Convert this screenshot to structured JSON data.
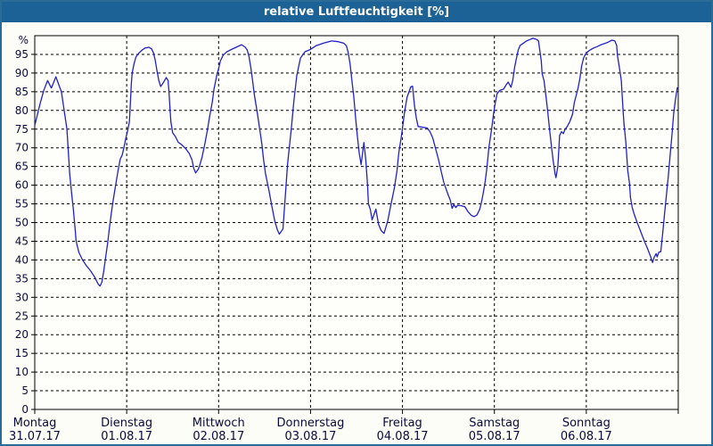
{
  "window": {
    "title": "relative Luftfeuchtigkeit [%]"
  },
  "colors": {
    "titlebar_bg": "#1d6296",
    "window_border": "#2a6b97",
    "content_bg": "#fdfdf7",
    "plot_bg": "#fefefb",
    "axis": "#000000",
    "grid": "#000000",
    "tick_text": "#0a0a3a",
    "line": "#2121c8",
    "title_text": "#ffffff"
  },
  "chart_data": {
    "type": "line",
    "title": "relative Luftfeuchtigkeit [%]",
    "ylabel": "%",
    "ylim": [
      0,
      100
    ],
    "ytick_step": 5,
    "yticks": [
      0,
      5,
      10,
      15,
      20,
      25,
      30,
      35,
      40,
      45,
      50,
      55,
      60,
      65,
      70,
      75,
      80,
      85,
      90,
      95
    ],
    "grid": true,
    "legend": "none",
    "x_axis": {
      "unit": "days",
      "xlim": [
        0,
        7
      ],
      "day_ticks": [
        {
          "name": "Montag",
          "date": "31.07.17",
          "t": 0
        },
        {
          "name": "Dienstag",
          "date": "01.08.17",
          "t": 1
        },
        {
          "name": "Mittwoch",
          "date": "02.08.17",
          "t": 2
        },
        {
          "name": "Donnerstag",
          "date": "03.08.17",
          "t": 3
        },
        {
          "name": "Freitag",
          "date": "04.08.17",
          "t": 4
        },
        {
          "name": "Samstag",
          "date": "05.08.17",
          "t": 5
        },
        {
          "name": "Sonntag",
          "date": "06.08.17",
          "t": 6
        }
      ]
    },
    "series": [
      {
        "name": "relative Luftfeuchtigkeit [%]",
        "points": [
          [
            0.0,
            76
          ],
          [
            0.03,
            79
          ],
          [
            0.06,
            82
          ],
          [
            0.1,
            85.5
          ],
          [
            0.14,
            88
          ],
          [
            0.18,
            86
          ],
          [
            0.23,
            89
          ],
          [
            0.26,
            87
          ],
          [
            0.29,
            85
          ],
          [
            0.32,
            80
          ],
          [
            0.35,
            75
          ],
          [
            0.37,
            67
          ],
          [
            0.38,
            63
          ],
          [
            0.4,
            58
          ],
          [
            0.42,
            53.5
          ],
          [
            0.44,
            48
          ],
          [
            0.45,
            45
          ],
          [
            0.48,
            42
          ],
          [
            0.52,
            40
          ],
          [
            0.56,
            38.5
          ],
          [
            0.61,
            37
          ],
          [
            0.65,
            35.5
          ],
          [
            0.69,
            33.5
          ],
          [
            0.71,
            33
          ],
          [
            0.73,
            34
          ],
          [
            0.75,
            37
          ],
          [
            0.77,
            40.5
          ],
          [
            0.79,
            44
          ],
          [
            0.81,
            48
          ],
          [
            0.83,
            52
          ],
          [
            0.85,
            55.5
          ],
          [
            0.87,
            58.5
          ],
          [
            0.89,
            61.5
          ],
          [
            0.91,
            64.5
          ],
          [
            0.93,
            67
          ],
          [
            0.95,
            68
          ],
          [
            0.97,
            70
          ],
          [
            0.99,
            72.5
          ],
          [
            1.01,
            74.5
          ],
          [
            1.03,
            77
          ],
          [
            1.04,
            82
          ],
          [
            1.05,
            87
          ],
          [
            1.06,
            90
          ],
          [
            1.08,
            92.5
          ],
          [
            1.1,
            94.3
          ],
          [
            1.13,
            95.3
          ],
          [
            1.17,
            96.2
          ],
          [
            1.2,
            96.7
          ],
          [
            1.24,
            96.9
          ],
          [
            1.27,
            96.5
          ],
          [
            1.29,
            95.5
          ],
          [
            1.31,
            93.5
          ],
          [
            1.33,
            90.5
          ],
          [
            1.35,
            88
          ],
          [
            1.37,
            86.4
          ],
          [
            1.4,
            87.5
          ],
          [
            1.43,
            88.8
          ],
          [
            1.45,
            88
          ],
          [
            1.46,
            85
          ],
          [
            1.47,
            81
          ],
          [
            1.48,
            77
          ],
          [
            1.5,
            74
          ],
          [
            1.53,
            73
          ],
          [
            1.56,
            71.5
          ],
          [
            1.6,
            70.8
          ],
          [
            1.64,
            69.8
          ],
          [
            1.68,
            68.5
          ],
          [
            1.71,
            66.8
          ],
          [
            1.73,
            64.5
          ],
          [
            1.75,
            63.3
          ],
          [
            1.78,
            64.3
          ],
          [
            1.8,
            65.8
          ],
          [
            1.82,
            67.5
          ],
          [
            1.85,
            71
          ],
          [
            1.88,
            75
          ],
          [
            1.9,
            78.1
          ],
          [
            1.93,
            82.1
          ],
          [
            1.95,
            85.7
          ],
          [
            1.98,
            89.3
          ],
          [
            2.0,
            91.2
          ],
          [
            2.02,
            93.3
          ],
          [
            2.05,
            94.8
          ],
          [
            2.09,
            95.7
          ],
          [
            2.13,
            96.2
          ],
          [
            2.19,
            96.9
          ],
          [
            2.25,
            97.6
          ],
          [
            2.29,
            96.9
          ],
          [
            2.31,
            96.2
          ],
          [
            2.33,
            94.5
          ],
          [
            2.35,
            91.5
          ],
          [
            2.37,
            88
          ],
          [
            2.39,
            84
          ],
          [
            2.41,
            81
          ],
          [
            2.43,
            77.9
          ],
          [
            2.45,
            74.5
          ],
          [
            2.47,
            71
          ],
          [
            2.49,
            66.7
          ],
          [
            2.51,
            63.1
          ],
          [
            2.55,
            58.3
          ],
          [
            2.58,
            54.3
          ],
          [
            2.61,
            50.5
          ],
          [
            2.64,
            48
          ],
          [
            2.66,
            46.9
          ],
          [
            2.7,
            48.3
          ],
          [
            2.72,
            55
          ],
          [
            2.75,
            65.5
          ],
          [
            2.79,
            75
          ],
          [
            2.82,
            82.9
          ],
          [
            2.85,
            89.3
          ],
          [
            2.89,
            94
          ],
          [
            2.94,
            95.7
          ],
          [
            2.99,
            96.2
          ],
          [
            3.06,
            97.3
          ],
          [
            3.14,
            98
          ],
          [
            3.23,
            98.6
          ],
          [
            3.3,
            98.4
          ],
          [
            3.36,
            98
          ],
          [
            3.39,
            97.3
          ],
          [
            3.41,
            95.5
          ],
          [
            3.43,
            92.4
          ],
          [
            3.45,
            88.1
          ],
          [
            3.47,
            83.8
          ],
          [
            3.49,
            78
          ],
          [
            3.51,
            73
          ],
          [
            3.53,
            68.5
          ],
          [
            3.55,
            65.5
          ],
          [
            3.58,
            71.4
          ],
          [
            3.6,
            67.1
          ],
          [
            3.62,
            60
          ],
          [
            3.63,
            55
          ],
          [
            3.65,
            53.5
          ],
          [
            3.67,
            50.7
          ],
          [
            3.71,
            53.6
          ],
          [
            3.74,
            49.5
          ],
          [
            3.77,
            47.8
          ],
          [
            3.8,
            47.1
          ],
          [
            3.84,
            50.5
          ],
          [
            3.87,
            54.3
          ],
          [
            3.91,
            59
          ],
          [
            3.94,
            63.8
          ],
          [
            3.96,
            68.6
          ],
          [
            3.99,
            73.3
          ],
          [
            4.02,
            79
          ],
          [
            4.05,
            83.5
          ],
          [
            4.09,
            86.3
          ],
          [
            4.11,
            86.5
          ],
          [
            4.13,
            81.4
          ],
          [
            4.15,
            78.1
          ],
          [
            4.17,
            75.7
          ],
          [
            4.22,
            75.5
          ],
          [
            4.27,
            75.3
          ],
          [
            4.3,
            74.3
          ],
          [
            4.33,
            72.6
          ],
          [
            4.36,
            69.8
          ],
          [
            4.39,
            67.1
          ],
          [
            4.42,
            63.8
          ],
          [
            4.45,
            60.7
          ],
          [
            4.49,
            57.9
          ],
          [
            4.52,
            56
          ],
          [
            4.54,
            53.8
          ],
          [
            4.56,
            54.8
          ],
          [
            4.58,
            54
          ],
          [
            4.6,
            54.6
          ],
          [
            4.64,
            54.5
          ],
          [
            4.68,
            54.2
          ],
          [
            4.71,
            53
          ],
          [
            4.75,
            51.9
          ],
          [
            4.78,
            51.6
          ],
          [
            4.81,
            52
          ],
          [
            4.84,
            53.5
          ],
          [
            4.86,
            55.5
          ],
          [
            4.88,
            58
          ],
          [
            4.9,
            61
          ],
          [
            4.92,
            65
          ],
          [
            4.94,
            70
          ],
          [
            4.97,
            75
          ],
          [
            4.99,
            79
          ],
          [
            5.01,
            82
          ],
          [
            5.03,
            84.5
          ],
          [
            5.06,
            85.4
          ],
          [
            5.1,
            85.7
          ],
          [
            5.13,
            86.9
          ],
          [
            5.15,
            87.6
          ],
          [
            5.18,
            86.2
          ],
          [
            5.2,
            88
          ],
          [
            5.22,
            91.5
          ],
          [
            5.24,
            94
          ],
          [
            5.26,
            96.2
          ],
          [
            5.28,
            97.4
          ],
          [
            5.31,
            97.9
          ],
          [
            5.35,
            98.6
          ],
          [
            5.39,
            99
          ],
          [
            5.42,
            99.3
          ],
          [
            5.46,
            99
          ],
          [
            5.48,
            98.6
          ],
          [
            5.49,
            96.7
          ],
          [
            5.51,
            93.3
          ],
          [
            5.52,
            89.8
          ],
          [
            5.54,
            88
          ],
          [
            5.56,
            84
          ],
          [
            5.58,
            79.8
          ],
          [
            5.6,
            75
          ],
          [
            5.62,
            70.5
          ],
          [
            5.64,
            66.5
          ],
          [
            5.66,
            63
          ],
          [
            5.67,
            62
          ],
          [
            5.69,
            65
          ],
          [
            5.71,
            73.3
          ],
          [
            5.73,
            74.3
          ],
          [
            5.75,
            73.8
          ],
          [
            5.77,
            75
          ],
          [
            5.79,
            75.6
          ],
          [
            5.82,
            77
          ],
          [
            5.85,
            79
          ],
          [
            5.87,
            82.1
          ],
          [
            5.89,
            84
          ],
          [
            5.91,
            86
          ],
          [
            5.93,
            88.5
          ],
          [
            5.95,
            92
          ],
          [
            5.97,
            94
          ],
          [
            5.99,
            95
          ],
          [
            6.02,
            95.8
          ],
          [
            6.05,
            96.3
          ],
          [
            6.08,
            96.7
          ],
          [
            6.12,
            97.1
          ],
          [
            6.16,
            97.6
          ],
          [
            6.2,
            97.9
          ],
          [
            6.24,
            98.3
          ],
          [
            6.28,
            98.8
          ],
          [
            6.31,
            98.6
          ],
          [
            6.33,
            97.4
          ],
          [
            6.34,
            94.5
          ],
          [
            6.36,
            91.4
          ],
          [
            6.38,
            88
          ],
          [
            6.39,
            84
          ],
          [
            6.4,
            80
          ],
          [
            6.41,
            76.5
          ],
          [
            6.43,
            71.5
          ],
          [
            6.44,
            68
          ],
          [
            6.45,
            64
          ],
          [
            6.47,
            60.5
          ],
          [
            6.48,
            56.7
          ],
          [
            6.5,
            54
          ],
          [
            6.52,
            52.3
          ],
          [
            6.55,
            50.2
          ],
          [
            6.58,
            48.3
          ],
          [
            6.61,
            46.4
          ],
          [
            6.64,
            44.5
          ],
          [
            6.67,
            42.8
          ],
          [
            6.7,
            40.8
          ],
          [
            6.72,
            39.3
          ],
          [
            6.74,
            40.8
          ],
          [
            6.76,
            41.7
          ],
          [
            6.77,
            40.8
          ],
          [
            6.79,
            42.1
          ],
          [
            6.81,
            42.2
          ],
          [
            6.83,
            47
          ],
          [
            6.85,
            52
          ],
          [
            6.87,
            57
          ],
          [
            6.89,
            62
          ],
          [
            6.91,
            67.5
          ],
          [
            6.93,
            73
          ],
          [
            6.95,
            79
          ],
          [
            6.97,
            83
          ],
          [
            6.99,
            86.2
          ]
        ]
      }
    ]
  }
}
